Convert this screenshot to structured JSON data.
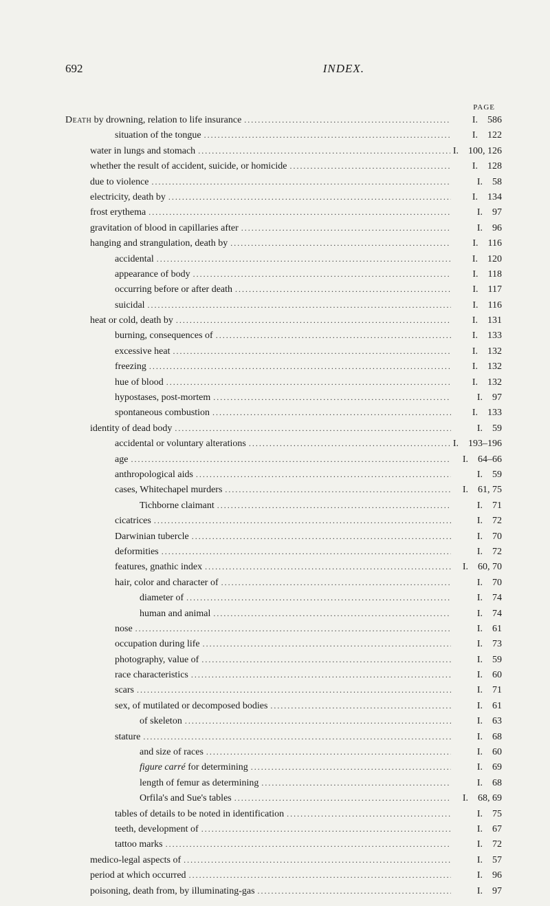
{
  "header": {
    "pageNumber": "692",
    "title": "INDEX."
  },
  "pageLabel": "PAGE",
  "entries": [
    {
      "indent": 0,
      "text": "Death by drowning, relation to life insurance",
      "smallcaps": "Death",
      "ref": "I.  586"
    },
    {
      "indent": 2,
      "text": "situation of the tongue",
      "ref": "I.  122"
    },
    {
      "indent": 1,
      "text": "water in lungs and stomach",
      "ref": "I.  100, 126"
    },
    {
      "indent": 1,
      "text": "whether the result of accident, suicide, or homicide",
      "ref": "I.  128"
    },
    {
      "indent": 1,
      "text": "due to violence",
      "ref": "I.    58"
    },
    {
      "indent": 1,
      "text": "electricity, death by",
      "ref": "I.  134"
    },
    {
      "indent": 1,
      "text": "frost erythema",
      "ref": "I.    97"
    },
    {
      "indent": 1,
      "text": "gravitation of blood in capillaries after",
      "ref": "I.    96"
    },
    {
      "indent": 1,
      "text": "hanging and strangulation, death by",
      "ref": "I.  116"
    },
    {
      "indent": 2,
      "text": "accidental",
      "ref": "I.  120"
    },
    {
      "indent": 2,
      "text": "appearance of body",
      "ref": "I.  118"
    },
    {
      "indent": 2,
      "text": "occurring before or after death",
      "ref": "I.  117"
    },
    {
      "indent": 2,
      "text": "suicidal",
      "ref": "I.  116"
    },
    {
      "indent": 1,
      "text": "heat or cold, death by",
      "ref": "I.  131"
    },
    {
      "indent": 2,
      "text": "burning, consequences of",
      "ref": "I.  133"
    },
    {
      "indent": 2,
      "text": "excessive heat",
      "ref": "I.  132"
    },
    {
      "indent": 2,
      "text": "freezing",
      "ref": "I.  132"
    },
    {
      "indent": 2,
      "text": "hue of blood",
      "ref": "I.  132"
    },
    {
      "indent": 2,
      "text": "hypostases, post-mortem",
      "ref": "I.    97"
    },
    {
      "indent": 2,
      "text": "spontaneous combustion",
      "ref": "I.  133"
    },
    {
      "indent": 1,
      "text": "identity of dead body",
      "ref": "I.    59"
    },
    {
      "indent": 2,
      "text": "accidental or voluntary alterations",
      "ref": "I.  193–196"
    },
    {
      "indent": 2,
      "text": "age",
      "ref": "I.  64–66"
    },
    {
      "indent": 2,
      "text": "anthropological aids",
      "ref": "I.    59"
    },
    {
      "indent": 2,
      "text": "cases, Whitechapel murders",
      "ref": "I.  61, 75"
    },
    {
      "indent": 3,
      "text": "Tichborne claimant",
      "ref": "I.    71"
    },
    {
      "indent": 2,
      "text": "cicatrices",
      "ref": "I.    72"
    },
    {
      "indent": 2,
      "text": "Darwinian tubercle",
      "ref": "I.    70"
    },
    {
      "indent": 2,
      "text": "deformities",
      "ref": "I.    72"
    },
    {
      "indent": 2,
      "text": "features, gnathic index",
      "ref": "I.  60, 70"
    },
    {
      "indent": 2,
      "text": "hair, color and character of",
      "ref": "I.    70"
    },
    {
      "indent": 3,
      "text": "diameter of",
      "ref": "I.    74"
    },
    {
      "indent": 3,
      "text": "human and animal",
      "ref": "I.    74"
    },
    {
      "indent": 2,
      "text": "nose",
      "ref": "I.    61"
    },
    {
      "indent": 2,
      "text": "occupation during life",
      "ref": "I.    73"
    },
    {
      "indent": 2,
      "text": "photography, value of",
      "ref": "I.    59"
    },
    {
      "indent": 2,
      "text": "race characteristics",
      "ref": "I.    60"
    },
    {
      "indent": 2,
      "text": "scars",
      "ref": "I.    71"
    },
    {
      "indent": 2,
      "text": "sex, of mutilated or decomposed bodies",
      "ref": "I.    61"
    },
    {
      "indent": 3,
      "text": "of skeleton",
      "ref": "I.    63"
    },
    {
      "indent": 2,
      "text": "stature",
      "ref": "I.    68"
    },
    {
      "indent": 3,
      "text": "and size of races",
      "ref": "I.    60"
    },
    {
      "indent": 3,
      "text": "figure carré for determining",
      "italic": "figure carré",
      "ref": "I.    69"
    },
    {
      "indent": 3,
      "text": "length of femur as determining",
      "ref": "I.    68"
    },
    {
      "indent": 3,
      "text": "Orfila's and Sue's tables",
      "ref": "I.  68, 69"
    },
    {
      "indent": 2,
      "text": "tables of details to be noted in identification",
      "ref": "I.    75"
    },
    {
      "indent": 2,
      "text": "teeth, development of",
      "ref": "I.    67"
    },
    {
      "indent": 2,
      "text": "tattoo marks",
      "ref": "I.    72"
    },
    {
      "indent": 1,
      "text": "medico-legal aspects of",
      "ref": "I.    57"
    },
    {
      "indent": 1,
      "text": "period at which occurred",
      "ref": "I.    96"
    },
    {
      "indent": 1,
      "text": "poisoning, death from, by illuminating-gas",
      "ref": "I.    97"
    }
  ]
}
